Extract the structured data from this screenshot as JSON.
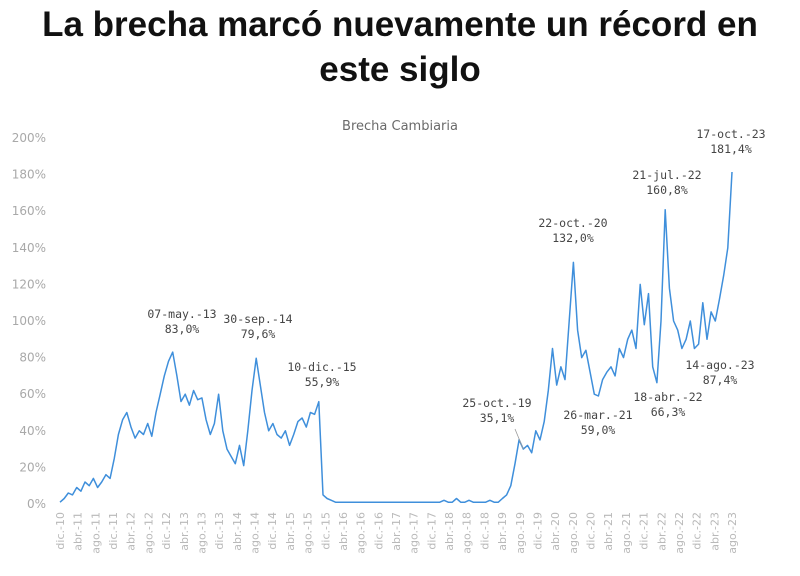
{
  "headline": {
    "line1": "La brecha marcó nuevamente un récord en",
    "line2": "este siglo"
  },
  "colors": {
    "line": "#3f8fdb",
    "annotation_text": "#454545",
    "axis_text": "#a9a9a9"
  },
  "chart_data": {
    "type": "line",
    "title": "Brecha Cambiaria",
    "xlabel": "",
    "ylabel": "",
    "ylim": [
      0,
      200
    ],
    "y_ticks": [
      "0%",
      "20%",
      "40%",
      "60%",
      "80%",
      "100%",
      "120%",
      "140%",
      "160%",
      "180%",
      "200%"
    ],
    "x_tick_labels": [
      "dic.-10",
      "abr.-11",
      "ago.-11",
      "dic.-11",
      "abr.-12",
      "ago.-12",
      "dic.-12",
      "abr.-13",
      "ago.-13",
      "dic.-13",
      "abr.-14",
      "ago.-14",
      "dic.-14",
      "abr.-15",
      "ago.-15",
      "dic.-15",
      "abr.-16",
      "ago.-16",
      "dic.-16",
      "abr.-17",
      "ago.-17",
      "dic.-17",
      "abr.-18",
      "ago.-18",
      "dic.-18",
      "abr.-19",
      "ago.-19",
      "dic.-19",
      "abr.-20",
      "ago.-20",
      "dic.-20",
      "abr.-21",
      "ago.-21",
      "dic.-21",
      "abr.-22",
      "ago.-22",
      "dic.-22",
      "abr.-23",
      "ago.-23"
    ],
    "grid": false,
    "legend": "none",
    "series": [
      {
        "values": [
          1,
          3,
          6,
          5,
          9,
          7,
          12,
          10,
          14,
          9,
          12,
          16,
          14,
          25,
          38,
          46,
          50,
          42,
          36,
          40,
          38,
          44,
          37,
          50,
          60,
          70,
          78,
          83,
          70,
          56,
          60,
          54,
          62,
          57,
          58,
          46,
          38,
          44,
          60,
          40,
          30,
          26,
          22,
          32,
          21,
          40,
          62,
          79.6,
          65,
          50,
          40,
          44,
          38,
          36,
          40,
          32,
          38,
          45,
          47,
          42,
          50,
          49,
          55.9,
          5,
          3,
          2,
          1,
          1,
          1,
          1,
          1,
          1,
          1,
          1,
          1,
          1,
          1,
          1,
          1,
          1,
          1,
          1,
          1,
          1,
          1,
          1,
          1,
          1,
          1,
          1,
          1,
          1,
          2,
          1,
          1,
          3,
          1,
          1,
          2,
          1,
          1,
          1,
          1,
          2,
          1,
          1,
          3,
          5,
          10,
          22,
          35.1,
          30,
          32,
          28,
          40,
          35,
          45,
          62,
          85,
          65,
          75,
          68,
          100,
          132,
          95,
          80,
          84,
          72,
          60,
          59,
          68,
          72,
          75,
          70,
          85,
          80,
          90,
          95,
          85,
          120,
          98,
          115,
          75,
          66.3,
          100,
          160.8,
          118,
          100,
          95,
          85,
          90,
          100,
          85,
          87.4,
          110,
          90,
          105,
          100,
          112,
          125,
          140,
          181.4
        ]
      }
    ],
    "annotations": [
      {
        "date": "07-may.-13",
        "value": "83,0%"
      },
      {
        "date": "30-sep.-14",
        "value": "79,6%"
      },
      {
        "date": "10-dic.-15",
        "value": "55,9%"
      },
      {
        "date": "25-oct.-19",
        "value": "35,1%"
      },
      {
        "date": "22-oct.-20",
        "value": "132,0%"
      },
      {
        "date": "26-mar.-21",
        "value": "59,0%"
      },
      {
        "date": "18-abr.-22",
        "value": "66,3%"
      },
      {
        "date": "21-jul.-22",
        "value": "160,8%"
      },
      {
        "date": "14-ago.-23",
        "value": "87,4%"
      },
      {
        "date": "17-oct.-23",
        "value": "181,4%"
      }
    ]
  }
}
